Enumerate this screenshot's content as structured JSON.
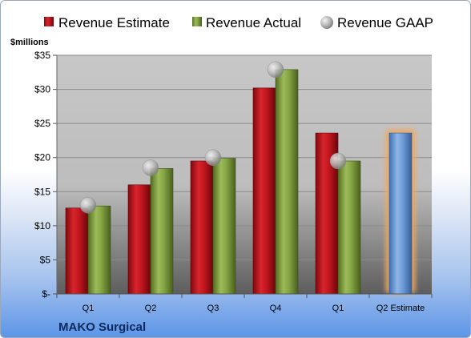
{
  "chart_data": {
    "type": "bar",
    "title": "MAKO Surgical",
    "ylabel": "$millions",
    "xlabel": "",
    "ylim": [
      0,
      35
    ],
    "yticks": [
      0,
      5,
      10,
      15,
      20,
      25,
      30,
      35
    ],
    "ytick_labels": [
      "$-",
      "$5",
      "$10",
      "$15",
      "$20",
      "$25",
      "$30",
      "$35"
    ],
    "categories": [
      "Q1",
      "Q2",
      "Q3",
      "Q4",
      "Q1",
      "Q2 Estimate"
    ],
    "series": [
      {
        "name": "Revenue Estimate",
        "color": "#c0161e",
        "values": [
          12.6,
          16.0,
          19.5,
          30.2,
          23.6,
          null
        ]
      },
      {
        "name": "Revenue Actual",
        "color": "#7f9e3c",
        "values": [
          12.9,
          18.4,
          19.9,
          32.9,
          19.5,
          23.6
        ]
      },
      {
        "name": "Revenue GAAP",
        "color": "#b8b8b8",
        "values": [
          13.0,
          18.5,
          20.0,
          32.9,
          19.5,
          null
        ]
      }
    ],
    "estimate_bar_color": "#6d9bd6",
    "highlight_glow_color": "#f0a860",
    "grid": true,
    "legend_position": "top"
  }
}
